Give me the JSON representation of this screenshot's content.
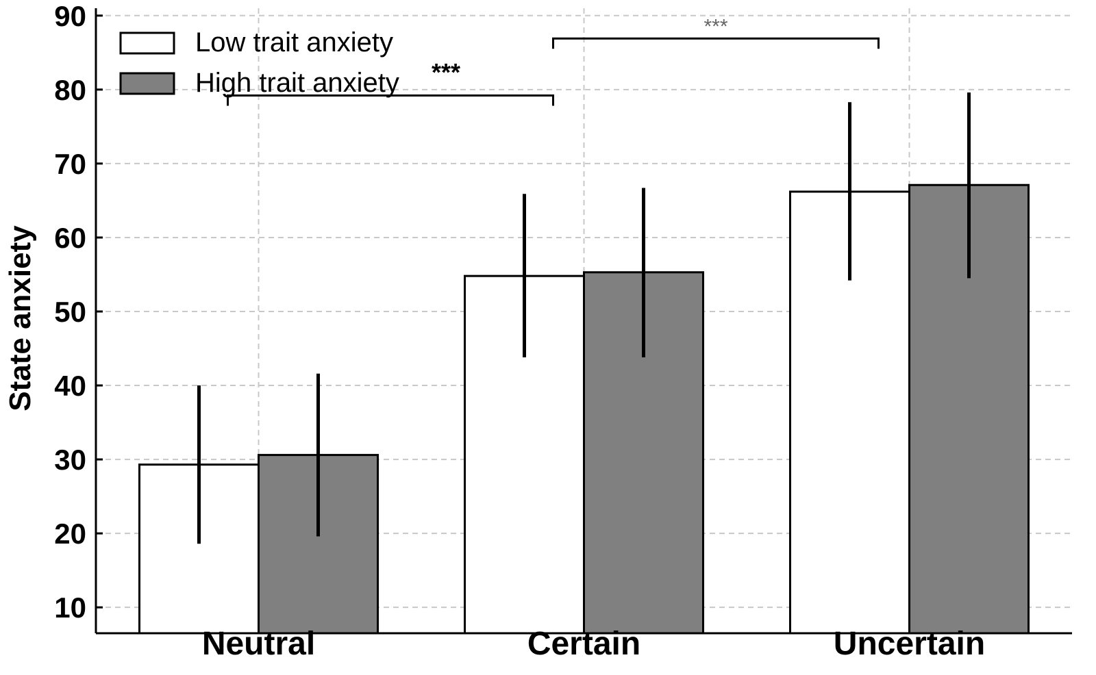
{
  "chart_data": {
    "type": "bar",
    "ylabel": "State anxiety",
    "xlabel": "",
    "ylim": [
      6.5,
      91
    ],
    "yticks": [
      10,
      20,
      30,
      40,
      50,
      60,
      70,
      80,
      90
    ],
    "categories": [
      "Neutral",
      "Certain",
      "Uncertain"
    ],
    "grid": true,
    "legend_position": "top-left",
    "series": [
      {
        "name": "Low trait anxiety",
        "color": "#ffffff",
        "values": [
          29.3,
          54.8,
          66.2
        ],
        "error_low": [
          18.6,
          43.8,
          54.2
        ],
        "error_high": [
          40.0,
          65.9,
          78.3
        ]
      },
      {
        "name": "High trait anxiety",
        "color": "#808080",
        "values": [
          30.6,
          55.3,
          67.1
        ],
        "error_low": [
          19.6,
          43.8,
          54.5
        ],
        "error_high": [
          41.6,
          66.7,
          79.6
        ]
      }
    ],
    "annotations": [
      {
        "label": "***",
        "from_category": "Neutral",
        "to_category": "Certain",
        "level": 79.2
      },
      {
        "label": "***",
        "from_category": "Certain",
        "to_category": "Uncertain",
        "level": 86.9
      }
    ]
  }
}
